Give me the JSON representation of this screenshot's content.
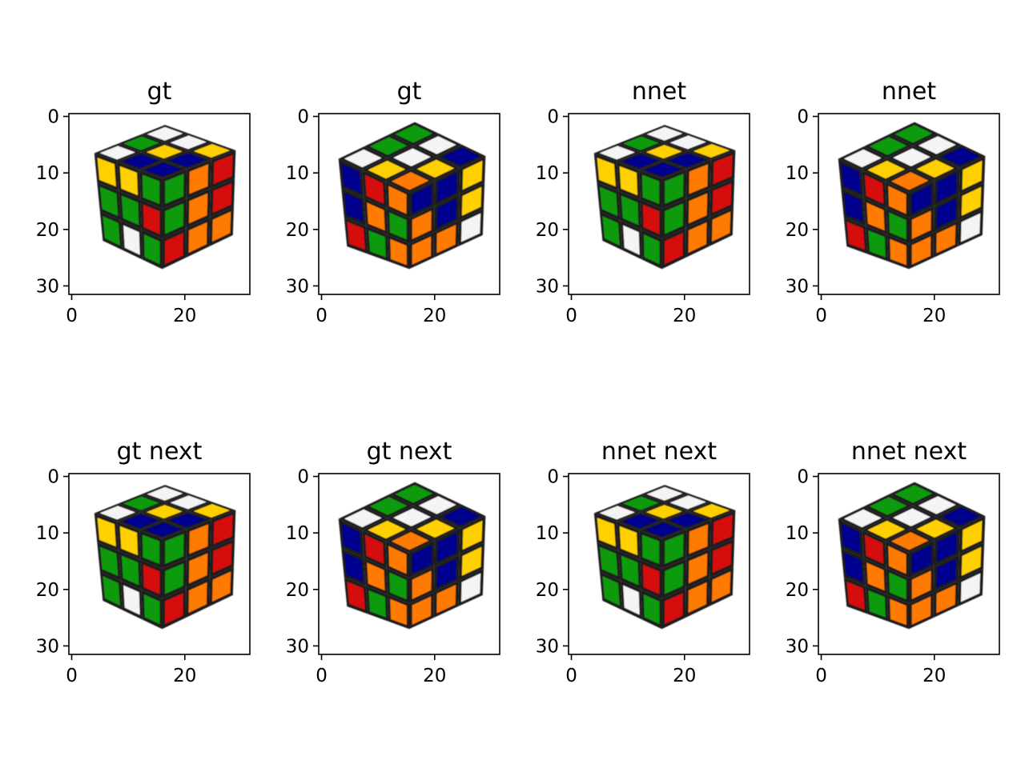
{
  "figure": {
    "panels": [
      {
        "title": "gt",
        "cube": "a",
        "variant": "gt"
      },
      {
        "title": "gt",
        "cube": "b",
        "variant": "gt"
      },
      {
        "title": "nnet",
        "cube": "a",
        "variant": "pred"
      },
      {
        "title": "nnet",
        "cube": "b",
        "variant": "pred"
      },
      {
        "title": "gt next",
        "cube": "a",
        "variant": "next"
      },
      {
        "title": "gt next",
        "cube": "b",
        "variant": "next"
      },
      {
        "title": "nnet next",
        "cube": "a",
        "variant": "nextpred"
      },
      {
        "title": "nnet next",
        "cube": "b",
        "variant": "nextpred"
      }
    ],
    "axes": {
      "x_ticks": [
        0,
        20
      ],
      "y_ticks": [
        0,
        10,
        20,
        30
      ],
      "xlim": [
        -0.5,
        31.5
      ],
      "ylim": [
        31.5,
        -0.5
      ]
    },
    "sticker_colors": {
      "white": "#f4f4f4",
      "yellow": "#ffd000",
      "red": "#d60d0d",
      "orange": "#ff7a00",
      "blue": "#00008e",
      "green": "#0f9a10"
    },
    "cubes": {
      "a": {
        "top": [
          "white",
          "green",
          "white",
          "blue",
          "yellow",
          "white",
          "blue",
          "blue",
          "yellow"
        ],
        "left": [
          "yellow",
          "yellow",
          "green",
          "green",
          "green",
          "red",
          "green",
          "white",
          "green"
        ],
        "right": [
          "green",
          "orange",
          "red",
          "green",
          "orange",
          "red",
          "red",
          "orange",
          "orange"
        ]
      },
      "b": {
        "top": [
          "white",
          "green",
          "green",
          "yellow",
          "white",
          "white",
          "orange",
          "yellow",
          "blue"
        ],
        "left": [
          "blue",
          "red",
          "orange",
          "blue",
          "orange",
          "green",
          "red",
          "green",
          "orange"
        ],
        "right": [
          "blue",
          "blue",
          "yellow",
          "orange",
          "blue",
          "yellow",
          "orange",
          "orange",
          "white"
        ]
      }
    }
  }
}
